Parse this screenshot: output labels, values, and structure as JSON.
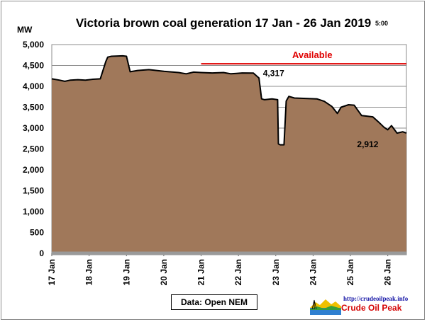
{
  "chart_data": {
    "type": "area",
    "title": "Victoria brown coal generation 17 Jan - 26 Jan 2019",
    "time_label": "5:00",
    "ylabel": "MW",
    "ylim": [
      0,
      5000
    ],
    "yticks": [
      "0",
      "500",
      "1,000",
      "1,500",
      "2,000",
      "2,500",
      "3,000",
      "3,500",
      "4,000",
      "4,500",
      "5,000"
    ],
    "ytick_values": [
      0,
      500,
      1000,
      1500,
      2000,
      2500,
      3000,
      3500,
      4000,
      4500,
      5000
    ],
    "xlim": [
      0,
      9.5
    ],
    "xticks": [
      "17 Jan",
      "18 Jan",
      "19 Jan",
      "20 Jan",
      "21 Jan",
      "22 Jan",
      "23 Jan",
      "24 Jan",
      "25 Jan",
      "26 Jan"
    ],
    "xtick_values": [
      0,
      1,
      2,
      3,
      4,
      5,
      6,
      7,
      8,
      9
    ],
    "grid": true,
    "fill_color": "#a0785a",
    "line_color": "#000000",
    "series": [
      {
        "x": [
          0,
          0.2,
          0.35,
          0.5,
          0.7,
          0.9,
          1.1,
          1.3,
          1.45,
          1.5,
          1.6,
          1.9,
          2.0,
          2.1,
          2.3,
          2.6,
          3.0,
          3.4,
          3.6,
          3.8,
          4.0,
          4.3,
          4.6,
          4.8,
          4.95,
          5.1,
          5.4,
          5.55,
          5.62,
          5.7,
          5.9,
          6.05,
          6.07,
          6.12,
          6.22,
          6.28,
          6.35,
          6.5,
          6.8,
          7.1,
          7.3,
          7.5,
          7.65,
          7.75,
          7.95,
          8.1,
          8.3,
          8.5,
          8.6,
          8.75,
          8.9,
          9.0,
          9.1,
          9.25,
          9.4,
          9.5
        ],
        "y": [
          4180,
          4150,
          4120,
          4150,
          4160,
          4150,
          4170,
          4180,
          4600,
          4700,
          4720,
          4730,
          4720,
          4350,
          4380,
          4400,
          4360,
          4330,
          4300,
          4340,
          4330,
          4320,
          4330,
          4300,
          4310,
          4320,
          4317,
          4200,
          3700,
          3680,
          3700,
          3680,
          2620,
          2600,
          2600,
          3650,
          3760,
          3720,
          3710,
          3700,
          3640,
          3520,
          3350,
          3500,
          3560,
          3550,
          3300,
          3280,
          3270,
          3150,
          3020,
          2960,
          3060,
          2880,
          2912,
          2880
        ]
      }
    ],
    "annotations": [
      {
        "text": "4,317",
        "x": 5.6,
        "y": 4317
      },
      {
        "text": "2,912",
        "x": 8.9,
        "y": 2912
      }
    ],
    "available": {
      "label": "Available",
      "y": 4540,
      "x_start": 4.0,
      "x_end": 9.5,
      "color": "#e00000"
    }
  },
  "source_label": "Data: Open NEM",
  "logo": {
    "url": "http://crudeoilpeak.info",
    "name": "Crude Oil Peak"
  }
}
